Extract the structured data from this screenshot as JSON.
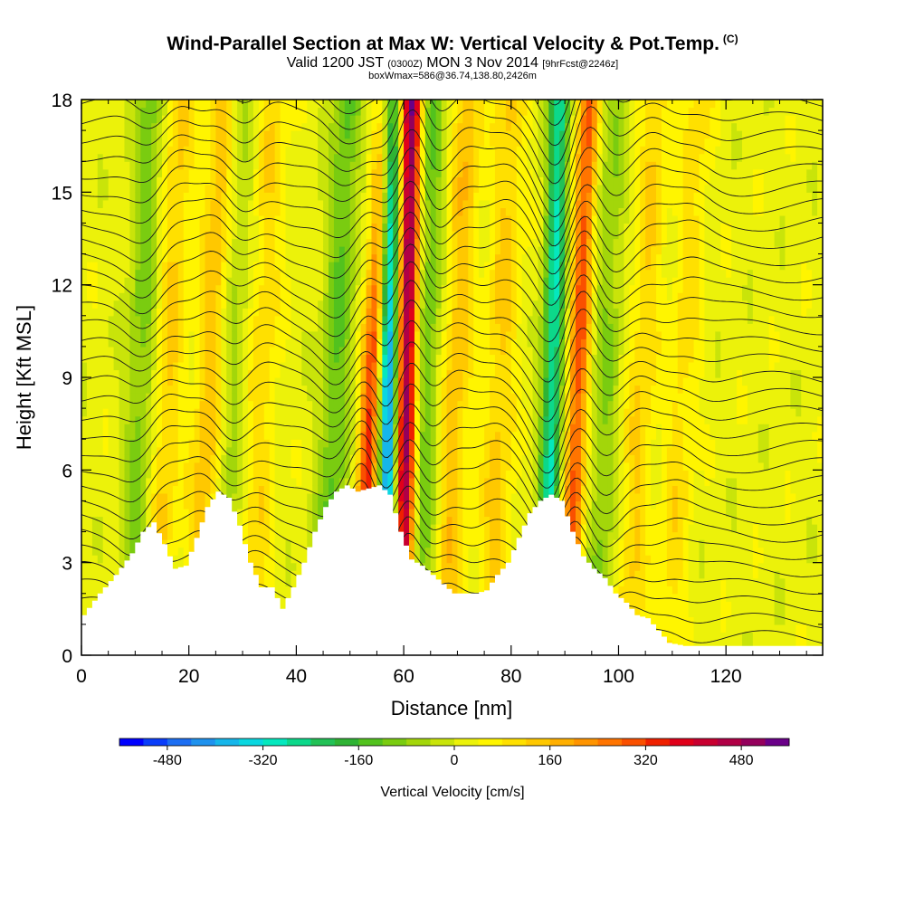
{
  "chart_data": {
    "type": "heatmap",
    "title": "Wind-Parallel Section at Max W: Vertical Velocity & Pot.Temp.",
    "copyright_mark": "(C)",
    "subtitle_main": "Valid 1200 JST",
    "subtitle_utc": "(0300Z)",
    "subtitle_date": "MON 3 Nov 2014",
    "subtitle_fcst": "[9hrFcst@2246z]",
    "subtitle2": "boxWmax=586@36.74,138.80,2426m",
    "xlabel": "Distance [nm]",
    "ylabel": "Height [Kft MSL]",
    "xlim": [
      0,
      138
    ],
    "ylim": [
      0,
      18
    ],
    "xticks": [
      0,
      20,
      40,
      60,
      80,
      100,
      120
    ],
    "yticks": [
      0,
      3,
      6,
      9,
      12,
      15,
      18
    ],
    "colorbar": {
      "label": "Vertical Velocity [cm/s]",
      "ticks": [
        "-480",
        "-320",
        "-160",
        "0",
        "160",
        "320",
        "480"
      ],
      "range": [
        -560,
        560
      ],
      "step": 40,
      "colors": [
        "#0000ff",
        "#0a3dfa",
        "#1c6ef2",
        "#1f92ee",
        "#16b6ea",
        "#0ad7e0",
        "#05e8be",
        "#0cd88a",
        "#22c156",
        "#2fb334",
        "#52c21e",
        "#7acc10",
        "#a3d60a",
        "#c9e40a",
        "#ecf20a",
        "#fff500",
        "#ffe000",
        "#ffc800",
        "#ffaf00",
        "#ff9400",
        "#ff7400",
        "#fa5000",
        "#ef2000",
        "#e0001a",
        "#c80030",
        "#b00046",
        "#94005c",
        "#6a0088"
      ]
    },
    "terrain_kft": [
      [
        0,
        1.3
      ],
      [
        3,
        2.0
      ],
      [
        6,
        2.6
      ],
      [
        9,
        3.3
      ],
      [
        11,
        4.0
      ],
      [
        13,
        4.3
      ],
      [
        15,
        3.6
      ],
      [
        17,
        2.8
      ],
      [
        19,
        2.9
      ],
      [
        21,
        3.8
      ],
      [
        23,
        4.8
      ],
      [
        25,
        5.3
      ],
      [
        27,
        5.1
      ],
      [
        29,
        4.2
      ],
      [
        31,
        3.0
      ],
      [
        33,
        2.2
      ],
      [
        35,
        2.2
      ],
      [
        37,
        1.5
      ],
      [
        39,
        2.2
      ],
      [
        41,
        3.0
      ],
      [
        43,
        4.0
      ],
      [
        45,
        4.8
      ],
      [
        47,
        5.3
      ],
      [
        49,
        5.5
      ],
      [
        51,
        5.3
      ],
      [
        53,
        5.4
      ],
      [
        55,
        5.5
      ],
      [
        57,
        5.2
      ],
      [
        59,
        4.0
      ],
      [
        61,
        3.1
      ],
      [
        63,
        2.9
      ],
      [
        65,
        2.6
      ],
      [
        67,
        2.3
      ],
      [
        69,
        2.0
      ],
      [
        71,
        2.0
      ],
      [
        73,
        2.0
      ],
      [
        75,
        2.1
      ],
      [
        77,
        2.6
      ],
      [
        79,
        3.0
      ],
      [
        81,
        3.8
      ],
      [
        83,
        4.6
      ],
      [
        85,
        5.0
      ],
      [
        87,
        5.2
      ],
      [
        89,
        5.0
      ],
      [
        91,
        4.0
      ],
      [
        93,
        3.2
      ],
      [
        95,
        2.8
      ],
      [
        97,
        2.5
      ],
      [
        99,
        2.0
      ],
      [
        101,
        1.7
      ],
      [
        103,
        1.3
      ],
      [
        105,
        1.2
      ],
      [
        107,
        0.8
      ],
      [
        109,
        0.4
      ],
      [
        112,
        0.3
      ],
      [
        120,
        0.3
      ],
      [
        130,
        0.3
      ],
      [
        138,
        0.3
      ]
    ],
    "updraft_bands": [
      {
        "x_bottom": 13.5,
        "x_top": 18.5,
        "w_cm_s": 110
      },
      {
        "x_bottom": 21.5,
        "x_top": 26.5,
        "w_cm_s": 140
      },
      {
        "x_bottom": 31.5,
        "x_top": 35.5,
        "w_cm_s": 90
      },
      {
        "x_bottom": 51.5,
        "x_top": 57.0,
        "w_cm_s": 330
      },
      {
        "x_bottom": 59.5,
        "x_top": 61.5,
        "w_cm_s": 520
      },
      {
        "x_bottom": 67.5,
        "x_top": 72.0,
        "w_cm_s": 130
      },
      {
        "x_bottom": 76.0,
        "x_top": 80.0,
        "w_cm_s": 110
      },
      {
        "x_bottom": 90.5,
        "x_top": 94.5,
        "w_cm_s": 280
      },
      {
        "x_bottom": 101.5,
        "x_top": 107.0,
        "w_cm_s": 100
      },
      {
        "x_bottom": 109.0,
        "x_top": 115.0,
        "w_cm_s": 80
      }
    ],
    "downdraft_bands": [
      {
        "x_bottom": 9.5,
        "x_top": 13.0,
        "w_cm_s": -120
      },
      {
        "x_bottom": 26.0,
        "x_top": 30.0,
        "w_cm_s": -80
      },
      {
        "x_bottom": 45.5,
        "x_top": 49.5,
        "w_cm_s": -140
      },
      {
        "x_bottom": 57.0,
        "x_top": 57.5,
        "w_cm_s": -480
      },
      {
        "x_bottom": 63.0,
        "x_top": 65.0,
        "w_cm_s": -140
      },
      {
        "x_bottom": 86.5,
        "x_top": 89.0,
        "w_cm_s": -300
      },
      {
        "x_bottom": 96.0,
        "x_top": 99.0,
        "w_cm_s": -100
      }
    ],
    "theta_contours_count": 34
  }
}
